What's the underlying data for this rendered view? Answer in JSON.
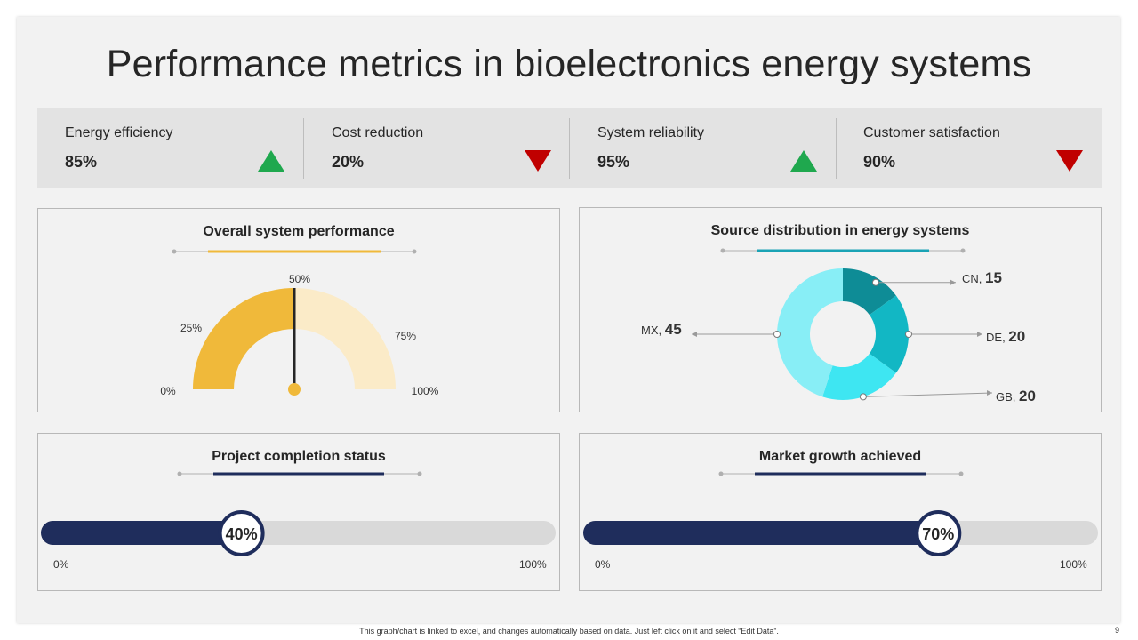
{
  "title": "Performance metrics in bioelectronics energy systems",
  "kpis": [
    {
      "label": "Energy efficiency",
      "value": "85%",
      "trend": "up"
    },
    {
      "label": "Cost reduction",
      "value": "20%",
      "trend": "down"
    },
    {
      "label": "System reliability",
      "value": "95%",
      "trend": "up"
    },
    {
      "label": "Customer satisfaction",
      "value": "90%",
      "trend": "down"
    }
  ],
  "colors": {
    "up": "#1fa84e",
    "down": "#c00000",
    "gauge_fill": "#f0b93a",
    "gauge_bg": "#fbebc8",
    "navy": "#1f2d5c",
    "track": "#d9d9d9",
    "donut_teal_dark": "#0e8c96",
    "donut_teal": "#12b7c4",
    "donut_cyan": "#3ee6f2",
    "donut_light": "#88eef6",
    "orange_line": "#f0b93a",
    "teal_line": "#1aa3b5"
  },
  "gauge": {
    "title": "Overall system performance",
    "ticks": [
      "0%",
      "25%",
      "50%",
      "75%",
      "100%"
    ]
  },
  "donut": {
    "title": "Source distribution in energy systems",
    "slices": [
      {
        "name": "CN",
        "value": "15"
      },
      {
        "name": "DE",
        "value": "20"
      },
      {
        "name": "GB",
        "value": "20"
      },
      {
        "name": "MX",
        "value": "45"
      }
    ]
  },
  "progress": [
    {
      "title": "Project completion status",
      "value_label": "40%",
      "min": "0%",
      "max": "100%"
    },
    {
      "title": "Market growth achieved",
      "value_label": "70%",
      "min": "0%",
      "max": "100%"
    }
  ],
  "chart_data": [
    {
      "type": "gauge",
      "title": "Overall system performance",
      "value": 50,
      "range": [
        0,
        100
      ],
      "tick_labels": [
        "0%",
        "25%",
        "50%",
        "75%",
        "100%"
      ]
    },
    {
      "type": "pie",
      "title": "Source distribution in energy systems",
      "categories": [
        "CN",
        "DE",
        "GB",
        "MX"
      ],
      "values": [
        15,
        20,
        20,
        45
      ]
    },
    {
      "type": "bar",
      "title": "Project completion status",
      "values": [
        40
      ],
      "range": [
        0,
        100
      ]
    },
    {
      "type": "bar",
      "title": "Market growth achieved",
      "values": [
        70
      ],
      "range": [
        0,
        100
      ]
    }
  ],
  "footer": "This graph/chart is linked to excel, and changes automatically based on data. Just left click on it and select “Edit Data”.",
  "page_number": "9"
}
